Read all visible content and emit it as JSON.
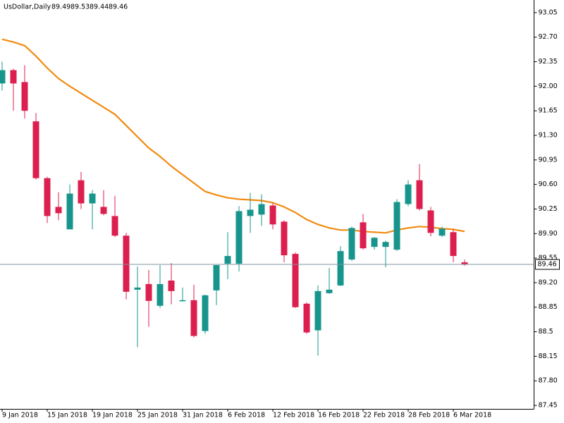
{
  "chart_data": {
    "type": "candlestick",
    "title": "UsDollar,Daily",
    "categories": [
      "9 Jan 2018",
      null,
      null,
      null,
      "15 Jan 2018",
      null,
      null,
      null,
      "19 Jan 2018",
      null,
      null,
      null,
      "25 Jan 2018",
      null,
      null,
      null,
      "31 Jan 2018",
      null,
      null,
      null,
      "6 Feb 2018",
      null,
      null,
      null,
      "12 Feb 2018",
      null,
      null,
      null,
      "16 Feb 2018",
      null,
      null,
      null,
      "22 Feb 2018",
      null,
      null,
      null,
      "28 Feb 2018",
      null,
      null,
      null,
      "6 Mar 2018",
      null
    ],
    "open": [
      92.04,
      92.23,
      92.06,
      91.5,
      90.69,
      90.28,
      89.96,
      90.66,
      90.33,
      90.28,
      90.15,
      89.87,
      89.1,
      89.18,
      88.87,
      89.23,
      88.94,
      88.95,
      88.51,
      89.09,
      89.47,
      89.47,
      90.15,
      90.17,
      90.3,
      90.07,
      89.61,
      88.9,
      88.52,
      89.05,
      89.16,
      89.53,
      90.06,
      89.71,
      89.71,
      89.67,
      90.32,
      90.66,
      90.23,
      89.87,
      89.92,
      89.49
    ],
    "high": [
      92.35,
      92.25,
      92.3,
      91.62,
      90.71,
      90.49,
      90.6,
      90.78,
      90.52,
      90.52,
      90.44,
      89.91,
      89.43,
      89.38,
      89.45,
      89.48,
      89.13,
      89.17,
      89.03,
      89.45,
      89.92,
      90.29,
      90.48,
      90.46,
      90.33,
      90.09,
      89.63,
      88.92,
      89.16,
      89.41,
      89.72,
      90.0,
      90.18,
      89.85,
      89.8,
      90.39,
      90.66,
      90.89,
      90.28,
      90.0,
      89.96,
      89.53
    ],
    "low": [
      91.94,
      91.65,
      91.54,
      90.67,
      90.05,
      90.09,
      89.96,
      90.25,
      89.96,
      90.16,
      89.85,
      88.96,
      88.28,
      88.57,
      88.84,
      88.89,
      88.93,
      88.42,
      88.47,
      88.88,
      89.25,
      89.36,
      89.91,
      90.01,
      89.96,
      89.49,
      88.84,
      88.47,
      88.16,
      89.04,
      89.15,
      89.51,
      89.67,
      89.67,
      89.42,
      89.65,
      90.29,
      90.23,
      89.86,
      89.85,
      89.49,
      89.44
    ],
    "close": [
      92.23,
      92.04,
      91.65,
      90.69,
      90.15,
      90.19,
      90.47,
      90.33,
      90.47,
      90.18,
      89.87,
      89.07,
      89.13,
      88.94,
      89.18,
      89.08,
      88.95,
      88.44,
      89.02,
      89.45,
      89.58,
      90.22,
      90.24,
      90.32,
      90.03,
      89.59,
      88.85,
      88.49,
      89.08,
      89.1,
      89.65,
      89.98,
      89.69,
      89.84,
      89.78,
      90.35,
      90.6,
      90.25,
      89.91,
      89.97,
      89.58,
      89.46
    ],
    "up_color": "#17958c",
    "down_color": "#dc1f4e",
    "moving_average": {
      "color": "#f28a0f",
      "values": [
        92.67,
        92.63,
        92.58,
        92.43,
        92.26,
        92.11,
        92.0,
        91.9,
        91.8,
        91.7,
        91.6,
        91.44,
        91.28,
        91.12,
        91.0,
        90.86,
        90.74,
        90.62,
        90.5,
        90.45,
        90.41,
        90.39,
        90.38,
        90.37,
        90.34,
        90.28,
        90.2,
        90.1,
        90.03,
        89.98,
        89.95,
        89.95,
        89.93,
        89.92,
        89.91,
        89.95,
        89.98,
        90.0,
        89.99,
        89.97,
        89.96,
        89.93
      ]
    },
    "ylim": [
      87.4,
      93.23
    ],
    "yticks": [
      93.05,
      {
        "value": 92.7,
        "label": "92.70"
      },
      92.35,
      {
        "value": 92,
        "label": "92.00"
      },
      91.65,
      {
        "value": 91.3,
        "label": "91.30"
      },
      90.95,
      {
        "value": 90.6,
        "label": "90.60"
      },
      90.25,
      {
        "value": 89.9,
        "label": "89.90"
      },
      89.55,
      {
        "value": 89.2,
        "label": "89.20"
      },
      88.85,
      88.5,
      88.15,
      {
        "value": 87.8,
        "label": "87.80"
      },
      87.45
    ]
  }
}
